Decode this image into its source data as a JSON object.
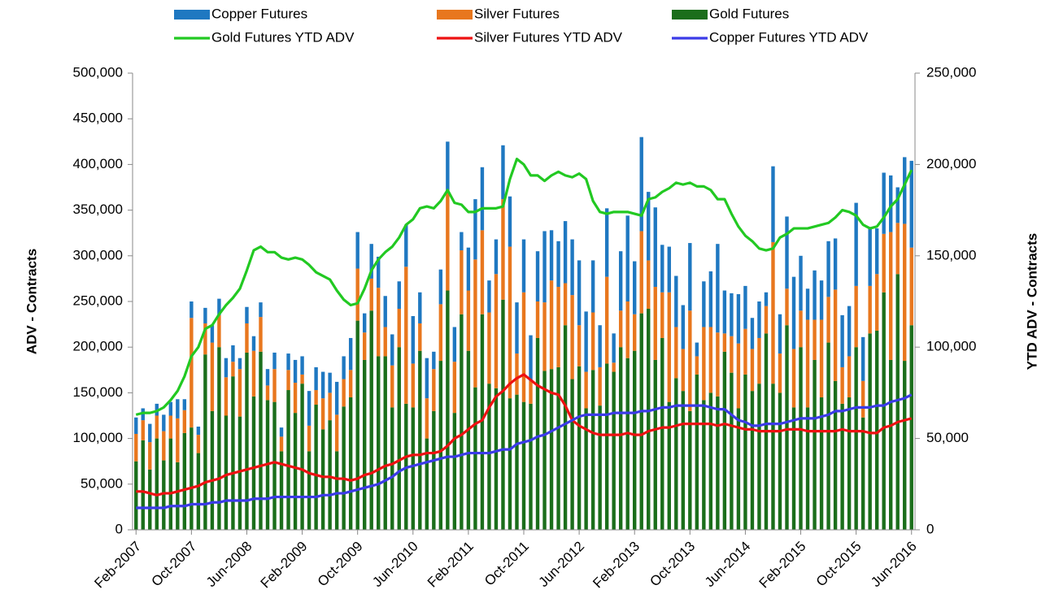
{
  "chart_data": {
    "type": "bar",
    "y_label": "ADV - Contracts",
    "y2_label": "YTD ADV - Contracts",
    "categories": [
      "Feb-2007",
      null,
      null,
      null,
      null,
      null,
      null,
      null,
      "Oct-2007",
      null,
      null,
      null,
      null,
      null,
      null,
      null,
      "Jun-2008",
      null,
      null,
      null,
      null,
      null,
      null,
      null,
      "Feb-2009",
      null,
      null,
      null,
      null,
      null,
      null,
      null,
      "Oct-2009",
      null,
      null,
      null,
      null,
      null,
      null,
      null,
      "Jun-2010",
      null,
      null,
      null,
      null,
      null,
      null,
      null,
      "Feb-2011",
      null,
      null,
      null,
      null,
      null,
      null,
      null,
      "Oct-2011",
      null,
      null,
      null,
      null,
      null,
      null,
      null,
      "Jun-2012",
      null,
      null,
      null,
      null,
      null,
      null,
      null,
      "Feb-2013",
      null,
      null,
      null,
      null,
      null,
      null,
      null,
      "Oct-2013",
      null,
      null,
      null,
      null,
      null,
      null,
      null,
      "Jun-2014",
      null,
      null,
      null,
      null,
      null,
      null,
      null,
      "Feb-2015",
      null,
      null,
      null,
      null,
      null,
      null,
      null,
      "Oct-2015",
      null,
      null,
      null,
      null,
      null,
      null,
      null,
      "Jun-2016"
    ],
    "ylim": [
      0,
      500000
    ],
    "yticks": [
      0,
      {
        "value": 50000,
        "label": "50,000"
      },
      {
        "value": 100000,
        "label": "100,000"
      },
      {
        "value": 150000,
        "label": "150,000"
      },
      {
        "value": 200000,
        "label": "200,000"
      },
      {
        "value": 250000,
        "label": "250,000"
      },
      {
        "value": 300000,
        "label": "300,000"
      },
      {
        "value": 350000,
        "label": "350,000"
      },
      {
        "value": 400000,
        "label": "400,000"
      },
      {
        "value": 450000,
        "label": "450,000"
      },
      {
        "value": 500000,
        "label": "500,000"
      }
    ],
    "y2lim": [
      0,
      250000
    ],
    "y2ticks": [
      0,
      {
        "value": 50000,
        "label": "50,000"
      },
      {
        "value": 100000,
        "label": "100,000"
      },
      {
        "value": 150000,
        "label": "150,000"
      },
      {
        "value": 200000,
        "label": "200,000"
      },
      {
        "value": 250000,
        "label": "250,000"
      }
    ],
    "grid": false,
    "series": [
      {
        "name": "Copper Futures",
        "type": "bar",
        "color": "#1f78c1",
        "values": [
          18000,
          13000,
          20000,
          13000,
          18000,
          15000,
          21000,
          12000,
          18000,
          9000,
          17000,
          19000,
          18000,
          21000,
          18000,
          12000,
          18000,
          16000,
          16000,
          18000,
          18000,
          10000,
          18000,
          25000,
          20000,
          38000,
          25000,
          29000,
          22000,
          36000,
          25000,
          35000,
          40000,
          21000,
          38000,
          34000,
          34000,
          34000,
          30000,
          46000,
          52000,
          34000,
          44000,
          19000,
          38000,
          53000,
          38000,
          20000,
          47000,
          66000,
          69000,
          35000,
          38000,
          59000,
          55000,
          56000,
          58000,
          50000,
          55000,
          78000,
          55000,
          50000,
          68000,
          61000,
          71000,
          66000,
          57000,
          46000,
          75000,
          32000,
          65000,
          94000,
          58000,
          103000,
          75000,
          87000,
          52000,
          50000,
          56000,
          48000,
          74000,
          15000,
          50000,
          61000,
          97000,
          47000,
          47000,
          54000,
          47000,
          34000,
          40000,
          15000,
          83000,
          43000,
          79000,
          79000,
          60000,
          34000,
          54000,
          43000,
          61000,
          56000,
          57000,
          55000,
          91000,
          48000,
          63000,
          50000,
          67000,
          62000,
          39000,
          73000,
          95000
        ]
      },
      {
        "name": "Silver Futures",
        "type": "bar",
        "color": "#e8771e",
        "values": [
          30000,
          22000,
          30000,
          25000,
          32000,
          25000,
          48000,
          25000,
          120000,
          20000,
          34000,
          75000,
          35000,
          42000,
          16000,
          52000,
          32000,
          50000,
          38000,
          16000,
          36000,
          16000,
          22000,
          33000,
          10000,
          28000,
          16000,
          34000,
          30000,
          40000,
          30000,
          30000,
          57000,
          30000,
          35000,
          75000,
          32000,
          46000,
          42000,
          150000,
          48000,
          30000,
          44000,
          46000,
          62000,
          110000,
          56000,
          70000,
          66000,
          140000,
          92000,
          78000,
          125000,
          110000,
          166000,
          45000,
          120000,
          25000,
          40000,
          75000,
          97000,
          88000,
          46000,
          92000,
          45000,
          40000,
          63000,
          42000,
          95000,
          10000,
          40000,
          62000,
          40000,
          90000,
          53000,
          80000,
          50000,
          120000,
          56000,
          46000,
          110000,
          20000,
          80000,
          72000,
          70000,
          20000,
          40000,
          71000,
          50000,
          46000,
          50000,
          30000,
          155000,
          43000,
          40000,
          64000,
          40000,
          96000,
          44000,
          85000,
          50000,
          100000,
          40000,
          45000,
          67000,
          40000,
          52000,
          62000,
          64000,
          140000,
          56000,
          150000,
          85000
        ]
      },
      {
        "name": "Gold Futures",
        "type": "bar",
        "color": "#1b6e1b",
        "values": [
          75000,
          98000,
          66000,
          100000,
          76000,
          100000,
          74000,
          106000,
          112000,
          84000,
          192000,
          130000,
          200000,
          125000,
          168000,
          124000,
          194000,
          146000,
          195000,
          142000,
          140000,
          86000,
          153000,
          128000,
          160000,
          86000,
          137000,
          110000,
          120000,
          86000,
          135000,
          145000,
          229000,
          186000,
          240000,
          190000,
          190000,
          134000,
          200000,
          138000,
          134000,
          196000,
          100000,
          130000,
          185000,
          262000,
          128000,
          236000,
          196000,
          156000,
          236000,
          160000,
          155000,
          252000,
          144000,
          148000,
          140000,
          138000,
          210000,
          174000,
          176000,
          178000,
          224000,
          165000,
          179000,
          133000,
          175000,
          136000,
          182000,
          173000,
          200000,
          188000,
          196000,
          237000,
          242000,
          186000,
          210000,
          140000,
          166000,
          152000,
          130000,
          170000,
          142000,
          150000,
          146000,
          195000,
          172000,
          133000,
          170000,
          152000,
          160000,
          215000,
          160000,
          150000,
          224000,
          134000,
          200000,
          134000,
          186000,
          145000,
          205000,
          163000,
          138000,
          145000,
          200000,
          123000,
          215000,
          218000,
          260000,
          186000,
          280000,
          185000,
          224000
        ]
      },
      {
        "name": "Gold Futures YTD ADV",
        "type": "line",
        "axis": "y2",
        "color": "#22c922",
        "values": [
          63000,
          64000,
          64000,
          65000,
          67000,
          71000,
          76000,
          84000,
          95000,
          100000,
          110000,
          112000,
          118000,
          123000,
          127000,
          132000,
          142000,
          153000,
          155000,
          152000,
          152000,
          149000,
          148000,
          149000,
          148000,
          145000,
          141000,
          139000,
          137000,
          131000,
          126000,
          123000,
          124000,
          132000,
          142000,
          148000,
          152000,
          155000,
          160000,
          167000,
          170000,
          176000,
          177000,
          176000,
          180000,
          186000,
          179000,
          178000,
          174000,
          174000,
          176000,
          176000,
          176000,
          177000,
          192000,
          203000,
          200000,
          194000,
          194000,
          191000,
          194000,
          196000,
          194000,
          193000,
          195000,
          192000,
          180000,
          174000,
          173000,
          174000,
          174000,
          174000,
          173000,
          172000,
          181000,
          182000,
          185000,
          187000,
          190000,
          189000,
          190000,
          188000,
          188000,
          186000,
          181000,
          181000,
          173000,
          166000,
          161000,
          158000,
          154000,
          153000,
          154000,
          160000,
          162000,
          165000,
          165000,
          165000,
          166000,
          167000,
          168000,
          171000,
          175000,
          174000,
          172000,
          167000,
          165000,
          166000,
          171000,
          177000,
          181000,
          189000,
          197000
        ]
      },
      {
        "name": "Silver Futures YTD ADV",
        "type": "line",
        "axis": "y2",
        "color": "#ee1111",
        "values": [
          21000,
          21000,
          20000,
          19000,
          20000,
          20000,
          21000,
          22000,
          23000,
          24000,
          26000,
          27000,
          28000,
          30000,
          31000,
          32000,
          33000,
          34000,
          35000,
          36000,
          37000,
          36000,
          35000,
          34000,
          33000,
          31000,
          30000,
          29000,
          29000,
          28000,
          28000,
          27000,
          28000,
          30000,
          31000,
          33000,
          35000,
          36000,
          38000,
          40000,
          41000,
          41000,
          42000,
          42000,
          43000,
          46000,
          50000,
          52000,
          55000,
          58000,
          60000,
          67000,
          73000,
          76000,
          80000,
          83000,
          85000,
          82000,
          79000,
          77000,
          75000,
          74000,
          68000,
          60000,
          57000,
          55000,
          53000,
          52000,
          52000,
          52000,
          52000,
          53000,
          52000,
          52000,
          54000,
          55000,
          56000,
          56000,
          57000,
          58000,
          58000,
          58000,
          58000,
          58000,
          57000,
          58000,
          57000,
          56000,
          55000,
          55000,
          54000,
          54000,
          54000,
          54000,
          55000,
          55000,
          55000,
          54000,
          54000,
          54000,
          54000,
          54000,
          55000,
          54000,
          54000,
          54000,
          53000,
          53000,
          56000,
          57000,
          59000,
          60000,
          61000
        ]
      },
      {
        "name": "Copper Futures YTD ADV",
        "type": "line",
        "axis": "y2",
        "color": "#3b3be8",
        "values": [
          12000,
          12000,
          12000,
          12000,
          12000,
          13000,
          13000,
          13000,
          14000,
          14000,
          14000,
          15000,
          15000,
          16000,
          16000,
          16000,
          16000,
          17000,
          17000,
          17000,
          18000,
          18000,
          18000,
          18000,
          18000,
          18000,
          18000,
          19000,
          19000,
          20000,
          20000,
          21000,
          22000,
          23000,
          24000,
          25000,
          27000,
          29000,
          32000,
          34000,
          35000,
          36000,
          37000,
          38000,
          39000,
          40000,
          40000,
          41000,
          42000,
          42000,
          42000,
          42000,
          43000,
          44000,
          44000,
          47000,
          48000,
          49000,
          51000,
          52000,
          54000,
          56000,
          58000,
          60000,
          62000,
          63000,
          63000,
          63000,
          63000,
          64000,
          64000,
          64000,
          64000,
          65000,
          65000,
          66000,
          67000,
          67000,
          68000,
          68000,
          68000,
          68000,
          68000,
          67000,
          66000,
          66000,
          63000,
          60000,
          59000,
          57000,
          57000,
          58000,
          58000,
          58000,
          59000,
          60000,
          61000,
          61000,
          61000,
          62000,
          63000,
          65000,
          65000,
          66000,
          67000,
          67000,
          67000,
          68000,
          68000,
          70000,
          71000,
          72000,
          74000
        ]
      }
    ]
  }
}
